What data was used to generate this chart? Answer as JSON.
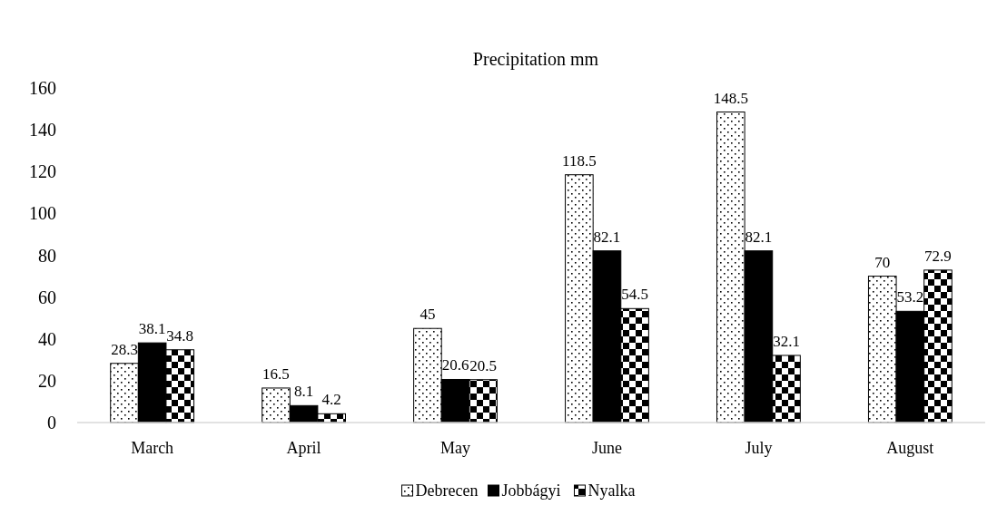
{
  "chart_data": {
    "type": "bar",
    "title": "Precipitation mm",
    "categories": [
      "March",
      "April",
      "May",
      "June",
      "July",
      "August"
    ],
    "series": [
      {
        "name": "Debrecen",
        "color": "#000000",
        "values": [
          28.3,
          16.5,
          45,
          118.5,
          148.5,
          70
        ]
      },
      {
        "name": "Jobbágyi",
        "color": "#000000",
        "values": [
          38.1,
          8.1,
          20.6,
          82.1,
          82.1,
          53.2
        ]
      },
      {
        "name": "Nyalka",
        "color": "#000000",
        "values": [
          34.8,
          4.2,
          20.5,
          54.5,
          32.1,
          72.9
        ]
      }
    ],
    "ylim": [
      0,
      160
    ],
    "yticks": [
      0,
      20,
      40,
      60,
      80,
      100,
      120,
      140,
      160
    ],
    "data_labels": true,
    "legend": "bottom",
    "grid": false
  }
}
